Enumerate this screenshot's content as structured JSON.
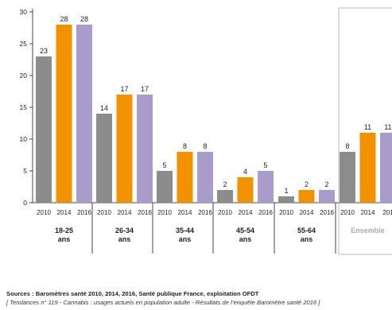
{
  "chart_data": {
    "type": "bar",
    "ylim": [
      0,
      30
    ],
    "yticks": [
      0,
      5,
      10,
      15,
      20,
      25,
      30
    ],
    "series": [
      {
        "name": "2010",
        "color": "#8c8c8c"
      },
      {
        "name": "2014",
        "color": "#f39200"
      },
      {
        "name": "2016",
        "color": "#a99ccb"
      }
    ],
    "groups": [
      {
        "label_line1": "18-25",
        "label_line2": "ans",
        "values": [
          23,
          28,
          28
        ]
      },
      {
        "label_line1": "26-34",
        "label_line2": "ans",
        "values": [
          14,
          17,
          17
        ]
      },
      {
        "label_line1": "35-44",
        "label_line2": "ans",
        "values": [
          5,
          8,
          8
        ]
      },
      {
        "label_line1": "45-54",
        "label_line2": "ans",
        "values": [
          2,
          4,
          5
        ]
      },
      {
        "label_line1": "55-64",
        "label_line2": "ans",
        "values": [
          1,
          2,
          2
        ]
      },
      {
        "label_line1": "Ensemble",
        "label_line2": "",
        "values": [
          8,
          11,
          11
        ],
        "highlighted": true
      }
    ],
    "category_tick_labels": [
      "2010",
      "2014",
      "2016"
    ],
    "last_visible_tick_label": "201",
    "grid": false,
    "legend": "none"
  },
  "footer": {
    "source": "Sources : Baromètres santé 2010, 2014, 2016, Santé publique France, exploitation OFDT",
    "reference": "[ Tendances n° 119 - Cannabis : usages actuels en population adulte - Résultats de l’enquête Baromètre santé 2016 ]"
  },
  "colors": {
    "axis": "#444444",
    "ensemble_frame": "#bbbbbb",
    "ensemble_label": "#aaaaaa",
    "text": "#222222"
  }
}
